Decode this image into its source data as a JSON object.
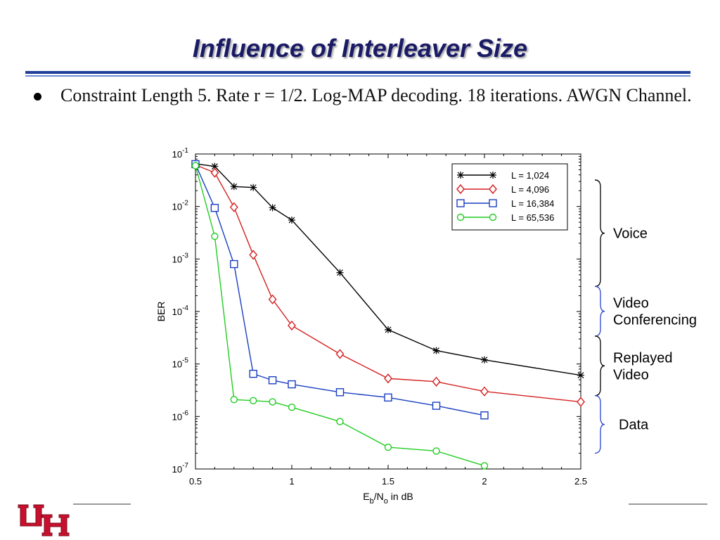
{
  "slide": {
    "title": "Influence of Interleaver Size",
    "bullet": "Constraint Length 5. Rate r = 1/2. Log-MAP decoding. 18 iterations. AWGN Channel."
  },
  "chart_data": {
    "type": "line",
    "xlabel": "Eb/No in dB",
    "ylabel": "BER",
    "xlim": [
      0.5,
      2.5
    ],
    "ylim": [
      1e-07,
      0.1
    ],
    "yscale": "log",
    "xticks": [
      "0.5",
      "1",
      "1.5",
      "2",
      "2.5"
    ],
    "yticks": [
      {
        "base": "10",
        "exp": "-1"
      },
      {
        "base": "10",
        "exp": "-2"
      },
      {
        "base": "10",
        "exp": "-3"
      },
      {
        "base": "10",
        "exp": "-4"
      },
      {
        "base": "10",
        "exp": "-5"
      },
      {
        "base": "10",
        "exp": "-6"
      },
      {
        "base": "10",
        "exp": "-7"
      }
    ],
    "legend_position": "top-right",
    "series": [
      {
        "name": "L = 1,024",
        "color": "#000000",
        "marker": "star",
        "x": [
          0.5,
          0.6,
          0.7,
          0.8,
          0.9,
          1.0,
          1.25,
          1.5,
          1.75,
          2.0,
          2.5
        ],
        "y": [
          0.065,
          0.058,
          0.024,
          0.023,
          0.0095,
          0.0055,
          0.00055,
          4.5e-05,
          1.8e-05,
          1.2e-05,
          6.1e-06
        ]
      },
      {
        "name": "L = 4,096",
        "color": "#d42020",
        "marker": "diamond",
        "x": [
          0.5,
          0.6,
          0.7,
          0.8,
          0.9,
          1.0,
          1.25,
          1.5,
          1.75,
          2.0,
          2.5
        ],
        "y": [
          0.062,
          0.044,
          0.0097,
          0.0012,
          0.00017,
          5.4e-05,
          1.55e-05,
          5.3e-06,
          4.6e-06,
          3e-06,
          1.9e-06
        ]
      },
      {
        "name": "L = 16,384",
        "color": "#1a3fc0",
        "marker": "square",
        "x": [
          0.5,
          0.6,
          0.7,
          0.8,
          0.9,
          1.0,
          1.25,
          1.5,
          1.75,
          2.0
        ],
        "y": [
          0.064,
          0.0094,
          0.0008,
          6.5e-06,
          4.9e-06,
          4.1e-06,
          2.9e-06,
          2.3e-06,
          1.6e-06,
          1.05e-06
        ]
      },
      {
        "name": "L = 65,536",
        "color": "#22cc22",
        "marker": "circle",
        "x": [
          0.5,
          0.6,
          0.7,
          0.8,
          0.9,
          1.0,
          1.25,
          1.5,
          1.75,
          2.0
        ],
        "y": [
          0.06,
          0.0027,
          2.1e-06,
          2e-06,
          1.9e-06,
          1.5e-06,
          8e-07,
          2.6e-07,
          2.2e-07,
          1.15e-07
        ]
      }
    ],
    "annotations": [
      {
        "label": "Voice",
        "y_from": 0.032,
        "y_to": 0.0003
      },
      {
        "label": "Video Conferencing",
        "y_from": 0.0003,
        "y_to": 3.4e-05
      },
      {
        "label": "Replayed Video",
        "y_from": 3.4e-05,
        "y_to": 2.5e-06
      },
      {
        "label": "Data",
        "y_from": 2.5e-06,
        "y_to": 2e-07
      }
    ],
    "annotation_color": "#2a44cc"
  },
  "logo": {
    "name": "UH"
  }
}
